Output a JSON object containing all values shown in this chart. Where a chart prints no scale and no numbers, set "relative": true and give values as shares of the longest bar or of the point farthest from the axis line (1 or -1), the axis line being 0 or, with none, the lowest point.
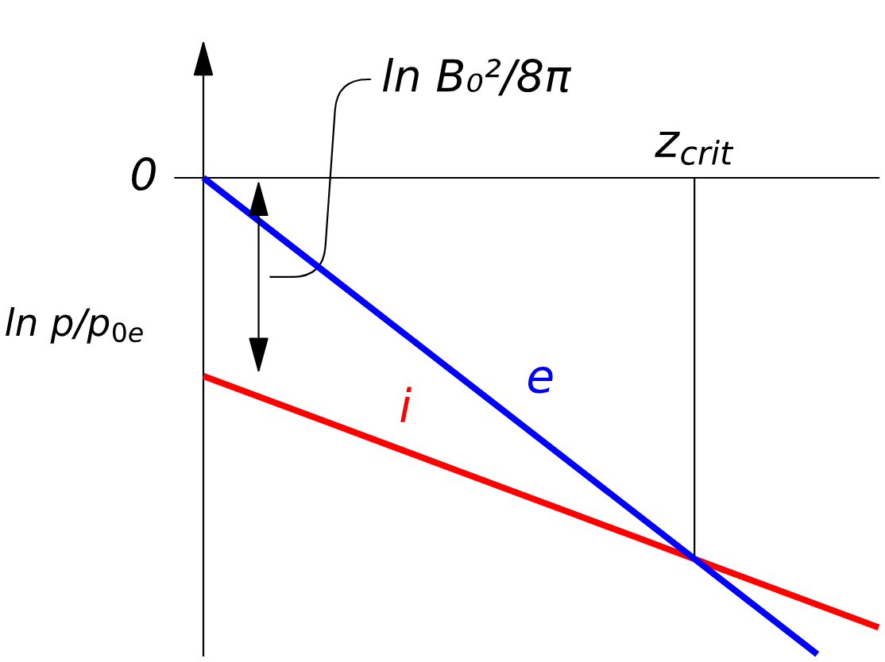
{
  "chart_data": {
    "type": "line",
    "relative": true,
    "ylabel": "ln p/p$_{0e}$",
    "categories": [
      null,
      null,
      null,
      null,
      null,
      null,
      null,
      null,
      null,
      null,
      null,
      null
    ],
    "series": [
      {
        "name": "i",
        "color": "#ff0000",
        "values": [
          -0.416,
          -0.464,
          -0.512,
          -0.56,
          -0.608,
          -0.656,
          -0.704,
          -0.752,
          -0.8,
          -0.848,
          -0.896,
          -0.944
        ]
      },
      {
        "name": "e",
        "color": "#0000ff",
        "values": [
          0,
          -0.1,
          -0.2,
          -0.3,
          -0.4,
          -0.5,
          -0.6,
          -0.7,
          -0.8,
          -0.9,
          -1,
          null
        ]
      }
    ],
    "annotations": [
      "0",
      {
        "text": "z$_{crit}$",
        "y": -0.8
      },
      "ln B₀²/8π"
    ],
    "grid": false,
    "legend": false,
    "marker": "none",
    "line_style": "solid"
  }
}
